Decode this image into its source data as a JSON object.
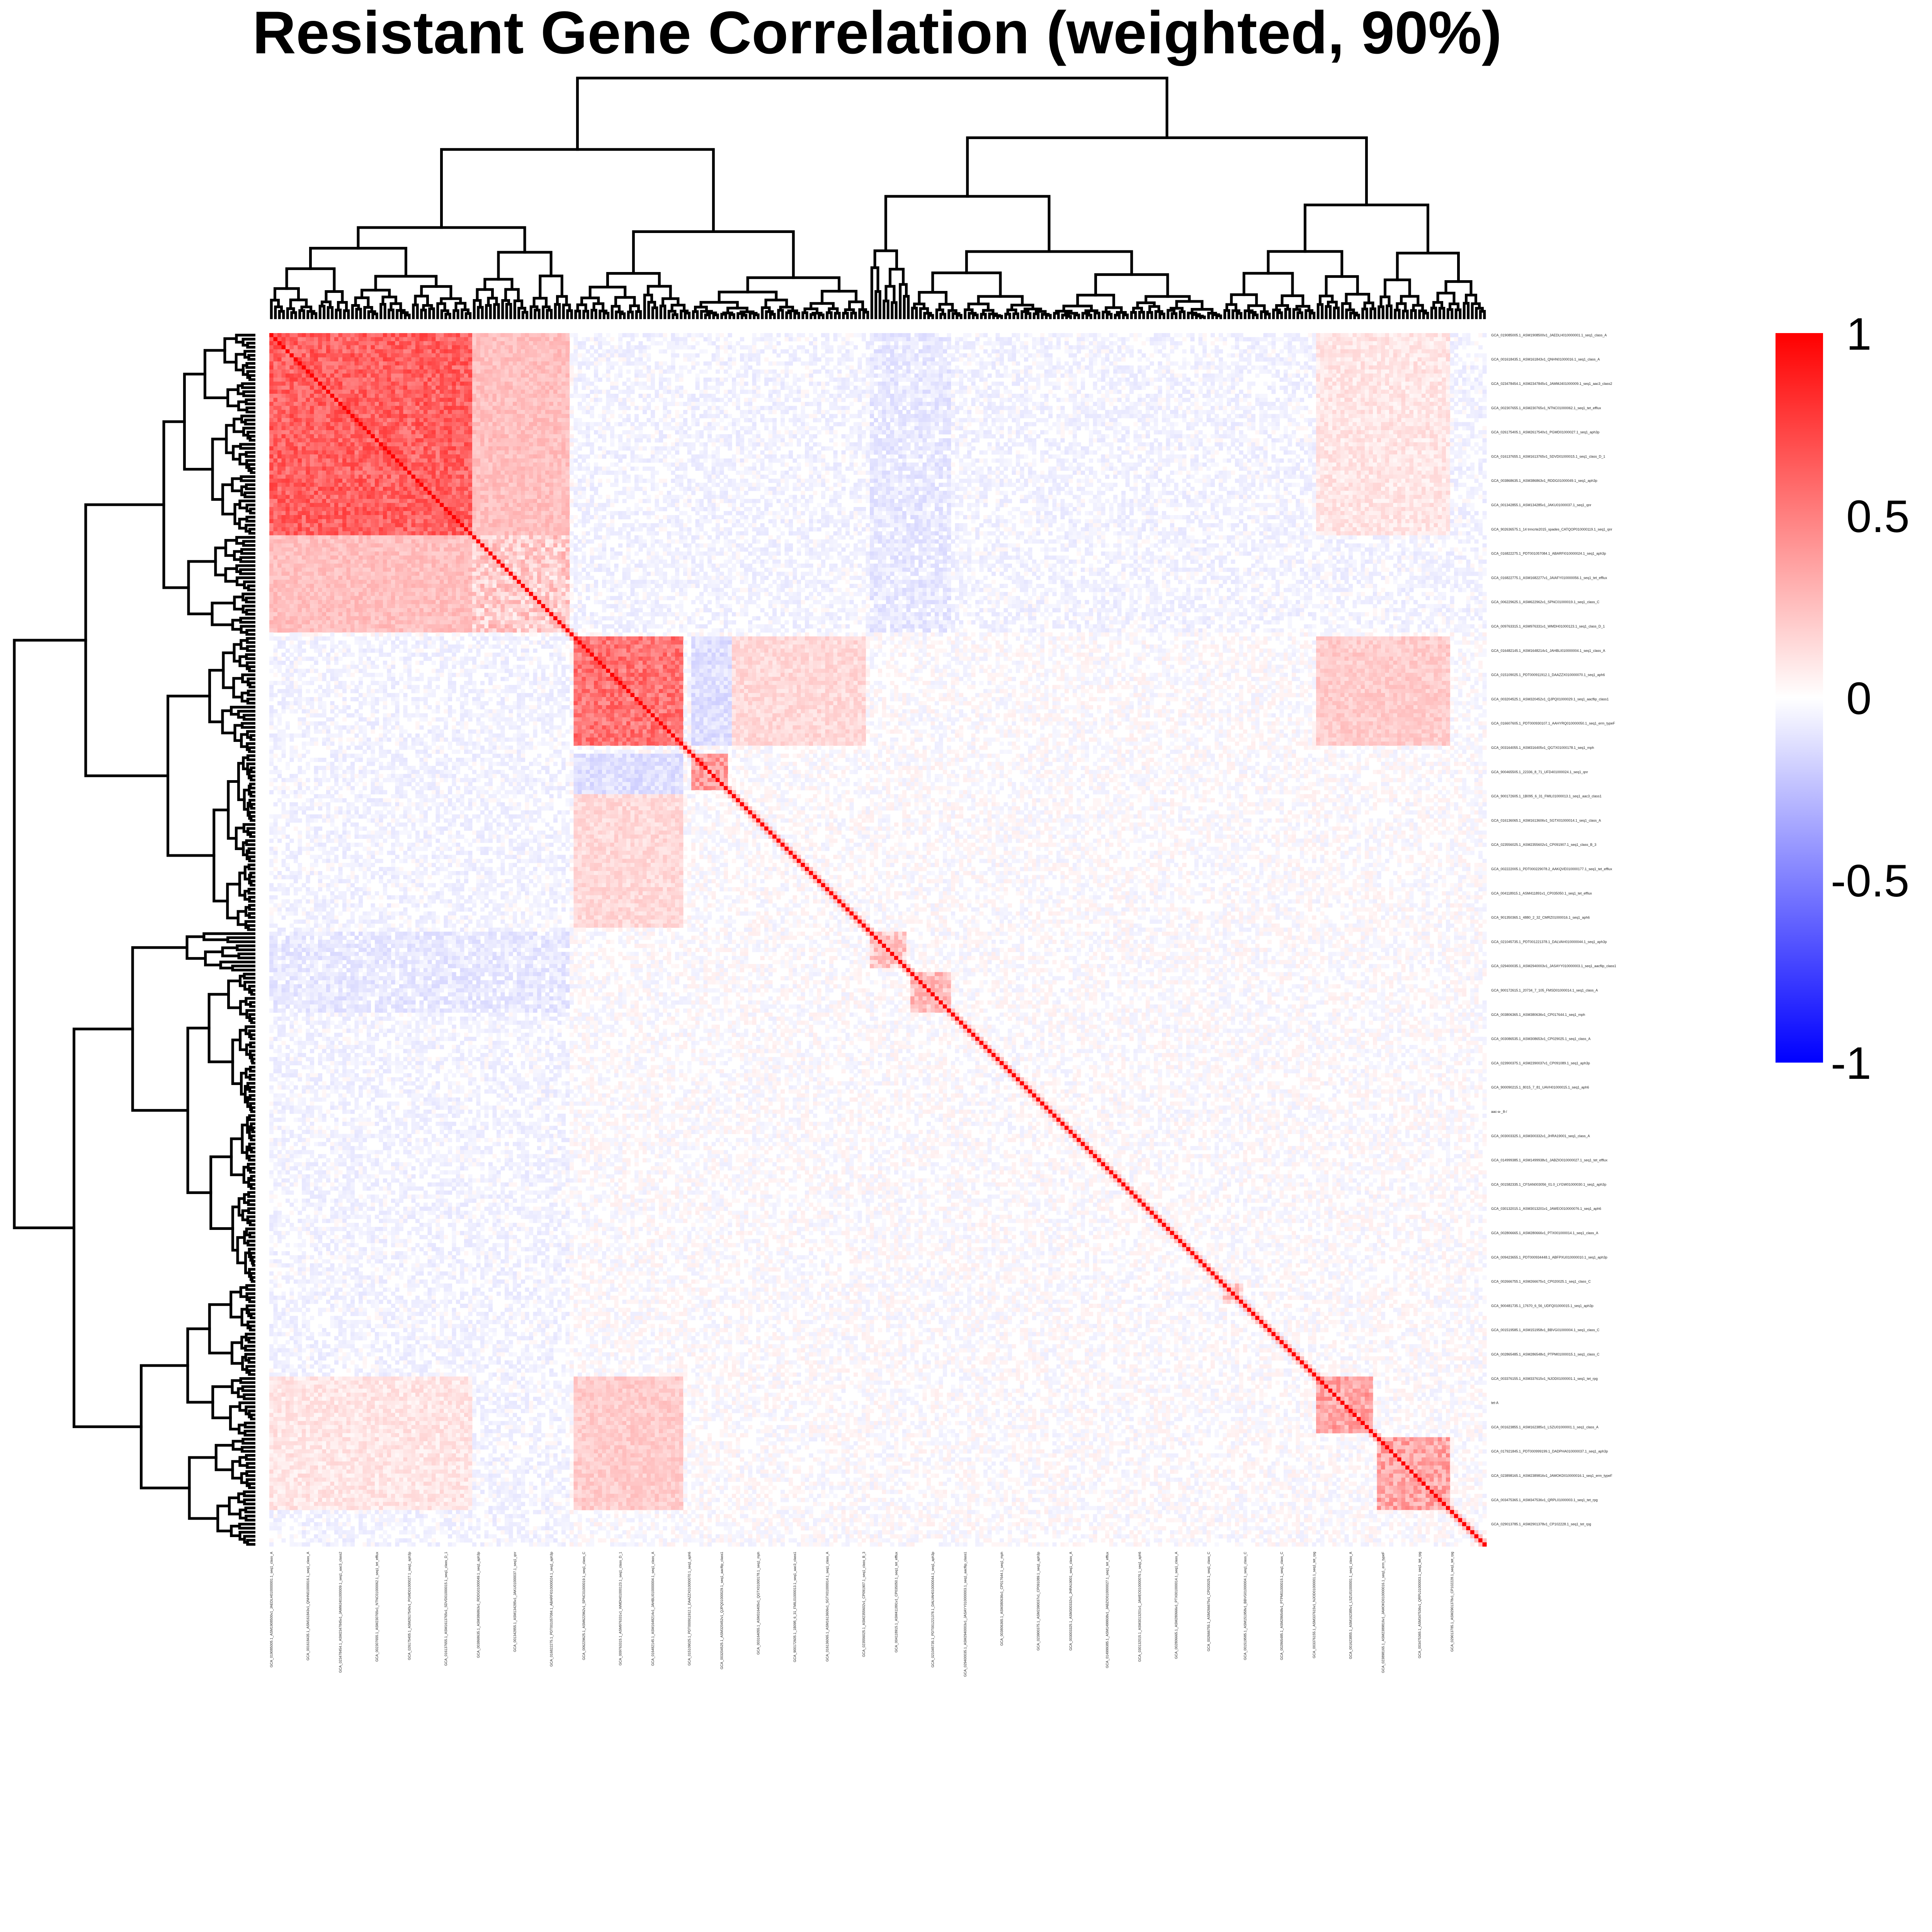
{
  "chart_data": {
    "type": "heatmap",
    "title": "Resistant Gene Correlation (weighted, 90%)",
    "xlabel": "",
    "ylabel": "",
    "n_genes": 300,
    "color_scale": {
      "min": -1,
      "max": 1,
      "low_color": "#0000ff",
      "mid_color": "#ffffff",
      "high_color": "#ff0000",
      "ticks": [
        "1",
        "0.5",
        "0",
        "-0.5",
        "-1"
      ]
    },
    "diagonal_value": 1,
    "clusters": [
      {
        "start": 0,
        "end": 50,
        "within": 0.62
      },
      {
        "start": 50,
        "end": 74,
        "within": 0.2
      },
      {
        "start": 75,
        "end": 102,
        "within": 0.55
      },
      {
        "start": 104,
        "end": 113,
        "within": 0.4
      },
      {
        "start": 148,
        "end": 157,
        "within": 0.2
      },
      {
        "start": 158,
        "end": 168,
        "within": 0.25
      },
      {
        "start": 235,
        "end": 240,
        "within": 0.2
      },
      {
        "start": 258,
        "end": 272,
        "within": 0.35
      },
      {
        "start": 273,
        "end": 291,
        "within": 0.35
      }
    ],
    "cross_blocks": [
      {
        "rows": [
          0,
          50
        ],
        "cols": [
          50,
          74
        ],
        "value": 0.25
      },
      {
        "rows": [
          75,
          102
        ],
        "cols": [
          104,
          114
        ],
        "value": -0.12
      },
      {
        "rows": [
          75,
          102
        ],
        "cols": [
          258,
          272
        ],
        "value": 0.2
      },
      {
        "rows": [
          75,
          102
        ],
        "cols": [
          114,
          147
        ],
        "value": 0.15
      },
      {
        "rows": [
          258,
          291
        ],
        "cols": [
          75,
          102
        ],
        "value": 0.2
      },
      {
        "rows": [
          258,
          291
        ],
        "cols": [
          0,
          50
        ],
        "value": 0.1
      },
      {
        "rows": [
          148,
          168
        ],
        "cols": [
          0,
          74
        ],
        "value": -0.08
      },
      {
        "rows": [
          0,
          74
        ],
        "cols": [
          75,
          300
        ],
        "value": -0.03
      }
    ],
    "legend_position": "right",
    "row_labels": [
      "GCA_019085005.1_ASM1908500v1_JAEDLH010000001.1_seq1_class_A",
      "GCA_001618435.1_ASM161843v1_QNHN01000016.1_seq1_class_A",
      "GCA_023478454.1_ASM2347845v1_JAMMJ401000009.1_seq1_aac3_class2",
      "GCA_002307655.1_ASM230765v1_NTNC01000062.1_seq1_tet_efflux",
      "GCA_026175405.1_ASM2617540v1_PGMD01000027.1_seq1_aph3p",
      "GCA_016137655.1_ASM1613765v1_SDVD01000015.1_seq1_class_D_1",
      "GCA_003868635.1_ASM386863v1_RDDG01000049.1_seq1_aph3p",
      "GCA_001342855.1_ASM134285v1_JAKU01000037.1_seq1_qnr",
      "GCA_902636575.1_14 trmcrte2015_spades_CATQOP010000119.1_seq1_qnr",
      "GCA_016822275.1_PDT001057084.1_ABARFI010000024.1_seq1_aph3p",
      "GCA_016822775.1_ASM1682277v1_JAIAFY010000056.1_seq1_tet_efflux",
      "GCA_006229625.1_ASM622962v1_SPNC01000019.1_seq1_class_C",
      "GCA_009763315.1_ASM976331v1_WMDH01000123.1_seq1_class_D_1",
      "GCA_016482145.1_ASM1648214v1_JAHBLI010000004.1_seq1_class_A",
      "GCA_015109025.1_PDT000911912.1_DAAZZX010000070.1_seq1_aph6",
      "GCA_003204525.1_ASM320452v1_QJPQ01000029.1_seq1_aacflip_class1",
      "GCA_016607605.1_PDT000930107.1_AAHYRQ010000050.1_seq1_erm_typeF",
      "GCA_003164055.1_ASM316405v1_QGTX01000178.1_seq1_mph",
      "GCA_900465505.1_22336_8_71_UFD401000024.1_seq1_qnr",
      "GCA_900172605.1_1B095_6_31_FMIL01000013.1_seq1_aac3_class1",
      "GCA_016136065.1_ASM1613606v1_SGTX01000014.1_seq1_class_A",
      "GCA_023556025.1_ASM2355602v1_CP091907.1_seq1_class_B_3",
      "GCA_002222005.1_PDT000229078.2_AAKQVE010000177.1_seq1_tet_efflux",
      "GCA_004118915.1_ASM411891v1_CP035050.1_seq1_tet_efflux",
      "GCA_901350365.1_4880_2_32_CMRZ01000016.1_seq1_aph6",
      "GCA_021045735.1_PDT001221378.1_DALVAH010000044.1_seq1_aph3p",
      "GCA_029400035.1_ASM2940003v1_JASAYY010000003.1_seq1_aacflip_class1",
      "GCA_900172615.1_20734_7_105_FMSD01000014.1_seq1_class_A",
      "GCA_003806365.1_ASM380636v1_CP017644.1_seq1_mph",
      "GCA_003086535.1_ASM308653v1_CP029025.1_seq1_class_A",
      "GCA_023900375.1_ASM2390037v1_CP091089.1_seq1_aph3p",
      "GCA_900090215.1_8015_7_81_UAVH01000015.1_seq1_aph6",
      "aac-a-_8-/",
      "GCA_003003325.1_ASM300332v1_JHRA19001_seq1_class_A",
      "GCA_014999385.1_ASM1499938v1_JABZIO010000027.1_seq1_tet_efflux",
      "GCA_001582335.1_CFSAN003056_01.0_LYGW01000030.1_seq1_aph3p",
      "GCA_030132015.1_ASM3013201v1_JAWEO010000076.1_seq1_aph6",
      "GCA_002806665.1_ASM280666v1_PTX001000014.1_seq1_class_A",
      "GCA_009423655.1_PDT000934448.1_ABFPXU010000010.1_seq1_aph3p",
      "GCA_002666755.1_ASM266675v1_CP020025.1_seq1_class_C",
      "GCA_900481735.1_17670_6_56_UDFQ01000015.1_seq1_aph3p",
      "GCA_001519585.1_ASM151958v1_BBVG01000004.1_seq1_class_C",
      "GCA_002865485.1_ASM286548v1_PTPM01000015.1_seq1_class_C",
      "GCA_003376155.1_ASM337615v1_NJOD01000001.1_seq1_tet_rpg",
      "tet-A",
      "GCA_001623855.1_ASM162385v1_LSZU01000001.1_seq1_class_A",
      "GCA_017921845.1_PDT000999199.1_DADPHA010000037.1_seq1_aph3p",
      "GCA_023898165.1_ASM2389816v1_JAMOKD010000016.1_seq1_erm_typeF",
      "GCA_003475365.1_ASM347536v1_QRPL01000003.1_seq1_tet_rpg",
      "GCA_029013785.1_ASM2901378v1_CP102228.1_seq1_tet_rpg"
    ],
    "col_labels": [
      "GCA_019085005.1_ASM1908500v1_JAEDLH010000001.1_seq1_class_A",
      "GCA_001618435.1_ASM161843v1_QNHN01000016.1_seq1_class_A",
      "GCA_023478454.1_ASM2347845v1_JAMMJ401000009.1_seq1_aac3_class2",
      "GCA_002307655.1_ASM230765v1_NTNC01000062.1_seq1_tet_efflux",
      "GCA_026175405.1_ASM2617540v1_PGMD01000027.1_seq1_aph3p",
      "GCA_016137655.1_ASM1613765v1_SDVD01000015.1_seq1_class_D_1",
      "GCA_003868635.1_ASM386863v1_RDDG01000049.1_seq1_aph3p",
      "GCA_001342855.1_ASM134285v1_JAKU01000037.1_seq1_qnr",
      "GCA_016822275.1_PDT001057084.1_ABARFI010000024.1_seq1_aph3p",
      "GCA_006229625.1_ASM622962v1_SPNC01000019.1_seq1_class_C",
      "GCA_009763315.1_ASM976331v1_WMDH01000123.1_seq1_class_D_1",
      "GCA_016482145.1_ASM1648214v1_JAHBLI010000004.1_seq1_class_A",
      "GCA_015109025.1_PDT000911912.1_DAAZZX010000070.1_seq1_aph6",
      "GCA_003204525.1_ASM320452v1_QJPQ01000029.1_seq1_aacflip_class1",
      "GCA_003164055.1_ASM316405v1_QGTX01000178.1_seq1_mph",
      "GCA_900172605.1_1B095_6_31_FMIL01000013.1_seq1_aac3_class1",
      "GCA_016136065.1_ASM1613606v1_SGTX01000014.1_seq1_class_A",
      "GCA_023556025.1_ASM2355602v1_CP091907.1_seq1_class_B_3",
      "GCA_004118915.1_ASM411891v1_CP035050.1_seq1_tet_efflux",
      "GCA_021045735.1_PDT001221378.1_DALVAH010000044.1_seq1_aph3p",
      "GCA_029400035.1_ASM2940003v1_JASAYY010000003.1_seq1_aacflip_class1",
      "GCA_003806365.1_ASM380636v1_CP017644.1_seq1_mph",
      "GCA_023900375.1_ASM2390037v1_CP091089.1_seq1_aph3p",
      "GCA_003003325.1_ASM300332v1_JHRA19001_seq1_class_A",
      "GCA_014999385.1_ASM1499938v1_JABZIO010000027.1_seq1_tet_efflux",
      "GCA_030132015.1_ASM3013201v1_JAWEO010000076.1_seq1_aph6",
      "GCA_002806665.1_ASM280666v1_PTX001000014.1_seq1_class_A",
      "GCA_002666755.1_ASM266675v1_CP020025.1_seq1_class_C",
      "GCA_001519585.1_ASM151958v1_BBVG01000004.1_seq1_class_C",
      "GCA_002865485.1_ASM286548v1_PTPM01000015.1_seq1_class_C",
      "GCA_003376155.1_ASM337615v1_NJOD01000001.1_seq1_tet_rpg",
      "GCA_001623855.1_ASM162385v1_LSZU01000001.1_seq1_class_A",
      "GCA_023898165.1_ASM2389816v1_JAMOKD010000016.1_seq1_erm_typeF",
      "GCA_003475365.1_ASM347536v1_QRPL01000003.1_seq1_tet_rpg",
      "GCA_029013785.1_ASM2901378v1_CP102228.1_seq1_tet_rpg"
    ]
  }
}
